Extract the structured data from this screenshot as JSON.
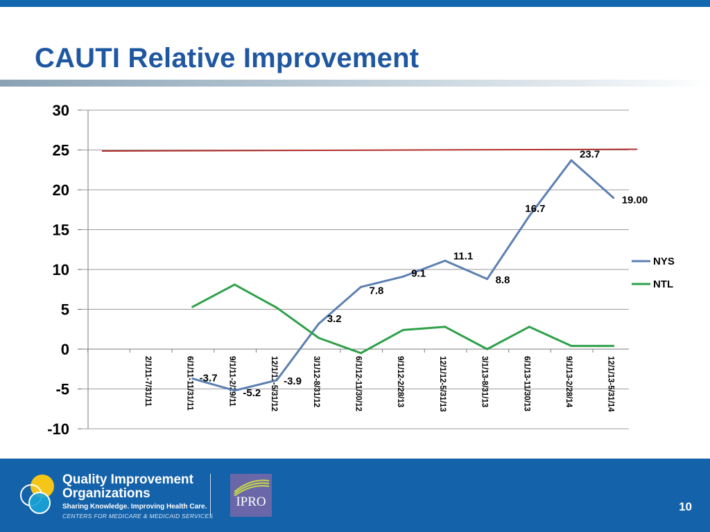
{
  "slide": {
    "title": "CAUTI Relative Improvement",
    "page_number": "10"
  },
  "footer": {
    "qio_title_line1": "Quality Improvement",
    "qio_title_line2": "Organizations",
    "qio_tagline": "Sharing Knowledge. Improving Health Care.",
    "qio_cms": "CENTERS FOR MEDICARE & MEDICAID SERVICES",
    "ipro_label": "IPRO"
  },
  "colors": {
    "title": "#1f57a1",
    "footer_bg": "#1462aa",
    "nys": "#5b7fb2",
    "ntl": "#2ea049",
    "target_line": "#b22b2b",
    "ipro_bg": "#6a67a8"
  },
  "chart_data": {
    "type": "line",
    "categories": [
      "2/1/11-7/31/11",
      "6/1/11-11/31/11",
      "9/1/11-2/29/11",
      "12/1/11-5/31/12",
      "3/1/12-8/31/12",
      "6/1/12-11/30/12",
      "9/1/12-2/28/13",
      "12/1/12-5/31/13",
      "3/1/13-8/31/13",
      "6/1/13-11/30/13",
      "9/1/13-2/28/14",
      "12/1/13-5/31/14"
    ],
    "series": [
      {
        "name": "NYS",
        "values": [
          null,
          -3.7,
          -5.2,
          -3.9,
          3.2,
          7.8,
          9.1,
          11.1,
          8.8,
          16.7,
          23.7,
          19.0
        ],
        "labels": [
          null,
          "-3.7",
          "-5.2",
          "-3.9",
          "3.2",
          "7.8",
          "9.1",
          "11.1",
          "8.8",
          "16.7",
          "23.7",
          "19.00"
        ]
      },
      {
        "name": "NTL",
        "values": [
          null,
          5.3,
          8.1,
          5.2,
          1.4,
          -0.5,
          2.4,
          2.8,
          0.0,
          2.8,
          0.4,
          0.4
        ]
      }
    ],
    "reference_line": {
      "value": 25
    },
    "ylim": [
      -10,
      30
    ],
    "yticks": [
      -10,
      -5,
      0,
      5,
      10,
      15,
      20,
      25,
      30
    ],
    "grid": true,
    "legend_position": "right",
    "title": "",
    "xlabel": "",
    "ylabel": ""
  }
}
